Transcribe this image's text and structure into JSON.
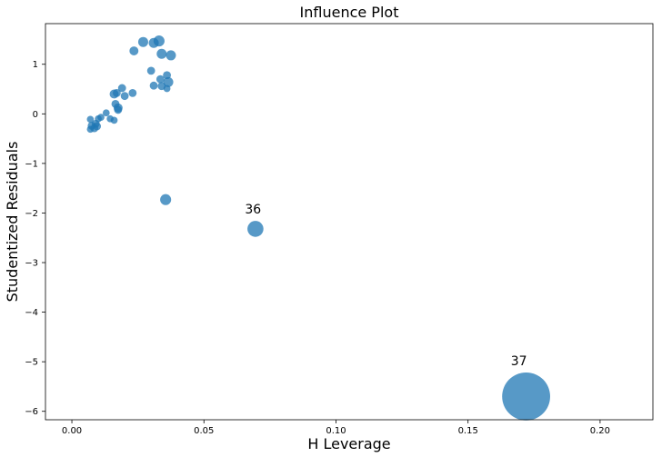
{
  "chart_data": {
    "type": "scatter",
    "title": "Influence Plot",
    "xlabel": "H Leverage",
    "ylabel": "Studentized Residuals",
    "xlim": [
      -0.01,
      0.22
    ],
    "ylim": [
      -6.17,
      1.82
    ],
    "x_ticks": [
      0.0,
      0.05,
      0.1,
      0.15,
      0.2
    ],
    "x_tick_labels": [
      "0.00",
      "0.05",
      "0.10",
      "0.15",
      "0.20"
    ],
    "y_ticks": [
      1,
      0,
      -1,
      -2,
      -3,
      -4,
      -5,
      -6
    ],
    "y_tick_labels": [
      "1",
      "0",
      "−1",
      "−2",
      "−3",
      "−4",
      "−5",
      "−6"
    ],
    "grid": false,
    "marker_color": "#1f77b4",
    "marker_alpha": 0.75,
    "size_encoding": "Cook's distance (relative)",
    "points": [
      {
        "x": 0.027,
        "y": 1.45,
        "size": 1
      },
      {
        "x": 0.031,
        "y": 1.43,
        "size": 1
      },
      {
        "x": 0.033,
        "y": 1.47,
        "size": 1.1
      },
      {
        "x": 0.0235,
        "y": 1.27,
        "size": 0.9
      },
      {
        "x": 0.034,
        "y": 1.21,
        "size": 1
      },
      {
        "x": 0.0375,
        "y": 1.18,
        "size": 1
      },
      {
        "x": 0.03,
        "y": 0.87,
        "size": 0.8
      },
      {
        "x": 0.036,
        "y": 0.78,
        "size": 0.8
      },
      {
        "x": 0.0335,
        "y": 0.7,
        "size": 0.8
      },
      {
        "x": 0.0365,
        "y": 0.64,
        "size": 1
      },
      {
        "x": 0.031,
        "y": 0.57,
        "size": 0.8
      },
      {
        "x": 0.034,
        "y": 0.56,
        "size": 0.8
      },
      {
        "x": 0.036,
        "y": 0.51,
        "size": 0.7
      },
      {
        "x": 0.019,
        "y": 0.52,
        "size": 0.8
      },
      {
        "x": 0.017,
        "y": 0.42,
        "size": 0.8
      },
      {
        "x": 0.016,
        "y": 0.4,
        "size": 0.9
      },
      {
        "x": 0.023,
        "y": 0.42,
        "size": 0.8
      },
      {
        "x": 0.02,
        "y": 0.36,
        "size": 0.8
      },
      {
        "x": 0.0165,
        "y": 0.2,
        "size": 0.8
      },
      {
        "x": 0.0175,
        "y": 0.12,
        "size": 0.9
      },
      {
        "x": 0.0175,
        "y": 0.08,
        "size": 0.8
      },
      {
        "x": 0.013,
        "y": 0.02,
        "size": 0.7
      },
      {
        "x": 0.011,
        "y": -0.07,
        "size": 0.7
      },
      {
        "x": 0.01,
        "y": -0.1,
        "size": 0.7
      },
      {
        "x": 0.0145,
        "y": -0.1,
        "size": 0.7
      },
      {
        "x": 0.016,
        "y": -0.13,
        "size": 0.7
      },
      {
        "x": 0.007,
        "y": -0.11,
        "size": 0.7
      },
      {
        "x": 0.009,
        "y": -0.2,
        "size": 0.8
      },
      {
        "x": 0.0075,
        "y": -0.24,
        "size": 0.8
      },
      {
        "x": 0.0095,
        "y": -0.25,
        "size": 0.8
      },
      {
        "x": 0.0085,
        "y": -0.29,
        "size": 0.8
      },
      {
        "x": 0.007,
        "y": -0.31,
        "size": 0.7
      },
      {
        "x": 0.0355,
        "y": -1.73,
        "size": 1.1
      },
      {
        "x": 0.0695,
        "y": -2.32,
        "size": 1.6,
        "label": "36"
      },
      {
        "x": 0.172,
        "y": -5.7,
        "size": 4.8,
        "label": "37"
      }
    ]
  }
}
